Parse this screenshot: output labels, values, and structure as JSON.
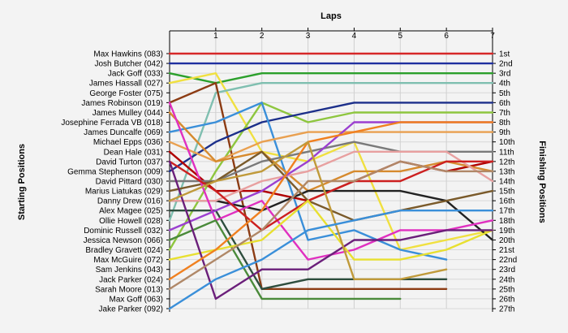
{
  "chart_data": {
    "type": "line",
    "title": "",
    "xlabel": "Laps",
    "ylabel_left": "Starting Positions",
    "ylabel_right": "Finishing Positions",
    "x": [
      0,
      1,
      2,
      3,
      4,
      5,
      6,
      7
    ],
    "xticks": [
      "1",
      "2",
      "3",
      "4",
      "5",
      "6",
      "7"
    ],
    "xlim": [
      0,
      7
    ],
    "ylim": [
      1,
      27
    ],
    "grid": true,
    "left_labels": [
      "Max Hawkins (083)",
      "Josh Butcher (042)",
      "Jack Goff (033)",
      "James Hassall (027)",
      "George Foster (075)",
      "James Robinson (019)",
      "James Mulley (044)",
      "Josephine Ferrada VB (018)",
      "James Duncalfe (069)",
      "Michael Epps (036)",
      "Dean Hale (031)",
      "David Turton (037)",
      "Gemma Stephenson (009)",
      "David Pittard (030)",
      "Marius Liatukas (029)",
      "Danny Drew (016)",
      "Alex Magee (025)",
      "Ollie Howell (028)",
      "Dominic Russell (032)",
      "Jessica Newson (066)",
      "Bradley Gravett (024)",
      "Max McGuire (072)",
      "Sam Jenkins (043)",
      "Jack Parker (024)",
      "Sarah Moore (013)",
      "Max Goff (063)",
      "Jake Parker (092)"
    ],
    "right_labels": [
      "1st",
      "2nd",
      "3rd",
      "4th",
      "5th",
      "6th",
      "7th",
      "8th",
      "9th",
      "10th",
      "11th",
      "12th",
      "13th",
      "14th",
      "15th",
      "16th",
      "17th",
      "18th",
      "19th",
      "20th",
      "21st",
      "22nd",
      "23rd",
      "24th",
      "25th",
      "26th",
      "27th"
    ],
    "series": [
      {
        "color": "#d62728",
        "values": [
          1,
          1,
          1,
          1,
          1,
          1,
          1,
          1
        ]
      },
      {
        "color": "#1f2f9f",
        "values": [
          2,
          2,
          2,
          2,
          2,
          2,
          2,
          2
        ]
      },
      {
        "color": "#2ca02c",
        "values": [
          3,
          4,
          3,
          3,
          3,
          3,
          3,
          3
        ]
      },
      {
        "color": "#f0e040",
        "values": [
          4,
          3,
          11,
          12,
          10,
          21,
          20,
          19
        ]
      },
      {
        "color": "#7fbfb0",
        "values": [
          18,
          5,
          4,
          4,
          4,
          4,
          4,
          4
        ]
      },
      {
        "color": "#8c3c14",
        "values": [
          6,
          4,
          25,
          25,
          25,
          25,
          25,
          null
        ]
      },
      {
        "color": "#8ec63f",
        "values": [
          21,
          13,
          6,
          8,
          7,
          7,
          7,
          7
        ]
      },
      {
        "color": "#1c2f8a",
        "values": [
          13,
          10,
          8,
          7,
          6,
          6,
          6,
          6
        ]
      },
      {
        "color": "#3a8fd9",
        "values": [
          9,
          8,
          6,
          20,
          19,
          21,
          22,
          null
        ]
      },
      {
        "color": "#e9a050",
        "values": [
          10,
          12,
          10,
          9,
          9,
          9,
          9,
          9
        ]
      },
      {
        "color": "#b00000",
        "values": [
          11,
          15,
          15,
          16,
          14,
          12,
          13,
          12
        ]
      },
      {
        "color": "#d68a2e",
        "values": [
          7,
          12,
          11,
          15,
          13,
          13,
          12,
          13
        ]
      },
      {
        "color": "#7a7a7a",
        "values": [
          14,
          14,
          12,
          11,
          10,
          11,
          11,
          11
        ]
      },
      {
        "color": "#222222",
        "values": [
          16,
          16,
          17,
          15,
          15,
          15,
          16,
          20
        ]
      },
      {
        "color": "#7a5a2a",
        "values": [
          15,
          14,
          11,
          16,
          18,
          17,
          16,
          15
        ]
      },
      {
        "color": "#e8a0a0",
        "values": [
          16,
          16,
          14,
          13,
          11,
          11,
          11,
          14
        ]
      },
      {
        "color": "#2e4e3e",
        "values": [
          17,
          17,
          25,
          24,
          24,
          24,
          24,
          null
        ]
      },
      {
        "color": "#e030c0",
        "values": [
          6,
          18,
          16,
          22,
          21,
          19,
          19,
          18
        ]
      },
      {
        "color": "#9b3fd0",
        "values": [
          19,
          17,
          15,
          12,
          8,
          8,
          8,
          8
        ]
      },
      {
        "color": "#4a8a3a",
        "values": [
          20,
          18,
          26,
          26,
          26,
          26,
          null,
          null
        ]
      },
      {
        "color": "#cc2020",
        "values": [
          12,
          15,
          19,
          16,
          14,
          14,
          12,
          12
        ]
      },
      {
        "color": "#e8e030",
        "values": [
          22,
          21,
          20,
          16,
          22,
          22,
          21,
          19
        ]
      },
      {
        "color": "#6b1f7a",
        "values": [
          12,
          26,
          23,
          23,
          20,
          20,
          19,
          19
        ]
      },
      {
        "color": "#f08020",
        "values": [
          24,
          21,
          17,
          10,
          9,
          8,
          8,
          8
        ]
      },
      {
        "color": "#b08868",
        "values": [
          25,
          22,
          19,
          14,
          14,
          12,
          13,
          13
        ]
      },
      {
        "color": "#c09a3a",
        "values": [
          16,
          14,
          13,
          10,
          24,
          24,
          23,
          null
        ]
      },
      {
        "color": "#3a8fd9",
        "values": [
          27,
          24,
          22,
          19,
          18,
          17,
          17,
          17
        ]
      }
    ]
  }
}
